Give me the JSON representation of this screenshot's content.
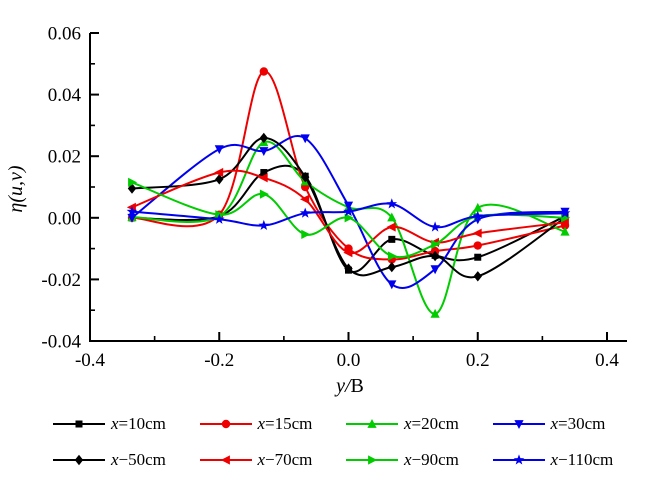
{
  "chart_data": {
    "type": "line",
    "title": "",
    "xlabel": "y/B",
    "ylabel": "η(u,v)",
    "xlim": [
      -0.4,
      0.4
    ],
    "ylim": [
      -0.04,
      0.06
    ],
    "x_ticks": [
      -0.4,
      -0.2,
      0.0,
      0.2,
      0.4
    ],
    "y_ticks": [
      -0.04,
      -0.02,
      0.0,
      0.02,
      0.04,
      0.06
    ],
    "grid": false,
    "legend_position": "bottom",
    "x": [
      -0.335,
      -0.2,
      -0.131,
      -0.067,
      0,
      0.067,
      0.134,
      0.2,
      0.335
    ],
    "series": [
      {
        "name": "x=10cm",
        "color": "#000000",
        "marker": "square",
        "values": [
          0.0,
          0.0005,
          0.0147,
          0.0135,
          -0.017,
          -0.007,
          -0.0122,
          -0.0128,
          0.0005
        ]
      },
      {
        "name": "x=15cm",
        "color": "#ee0000",
        "marker": "circle",
        "values": [
          0.0,
          0.001,
          0.0475,
          0.01,
          -0.01,
          -0.0135,
          -0.0108,
          -0.009,
          -0.0025
        ]
      },
      {
        "name": "x=20cm",
        "color": "#00cc00",
        "marker": "triangle-up",
        "values": [
          0.0002,
          0.0005,
          0.0245,
          0.0118,
          0.0034,
          0.0001,
          -0.0312,
          0.0032,
          -0.0045
        ]
      },
      {
        "name": "x=30cm",
        "color": "#0000ee",
        "marker": "triangle-down",
        "values": [
          0.0,
          0.0223,
          0.0217,
          0.0258,
          0.004,
          -0.0216,
          -0.0167,
          -0.0005,
          0.002
        ]
      },
      {
        "name": "x−50cm",
        "color": "#000000",
        "marker": "diamond",
        "values": [
          0.0095,
          0.0125,
          0.0259,
          0.0132,
          -0.0165,
          -0.016,
          -0.0124,
          -0.019,
          0.0
        ]
      },
      {
        "name": "x−70cm",
        "color": "#ee0000",
        "marker": "triangle-left",
        "values": [
          0.0034,
          0.0147,
          0.013,
          0.006,
          -0.0113,
          -0.003,
          -0.008,
          -0.005,
          -0.0015
        ]
      },
      {
        "name": "x−90cm",
        "color": "#00cc00",
        "marker": "triangle-right",
        "values": [
          0.0115,
          0.001,
          0.0077,
          -0.0054,
          0.0,
          -0.0124,
          -0.0086,
          0.0005,
          0.0
        ]
      },
      {
        "name": "x−110cm",
        "color": "#0000ee",
        "marker": "star",
        "values": [
          0.002,
          -0.0005,
          -0.0025,
          0.0015,
          0.002,
          0.0045,
          -0.003,
          0.0005,
          0.0015
        ]
      }
    ]
  }
}
